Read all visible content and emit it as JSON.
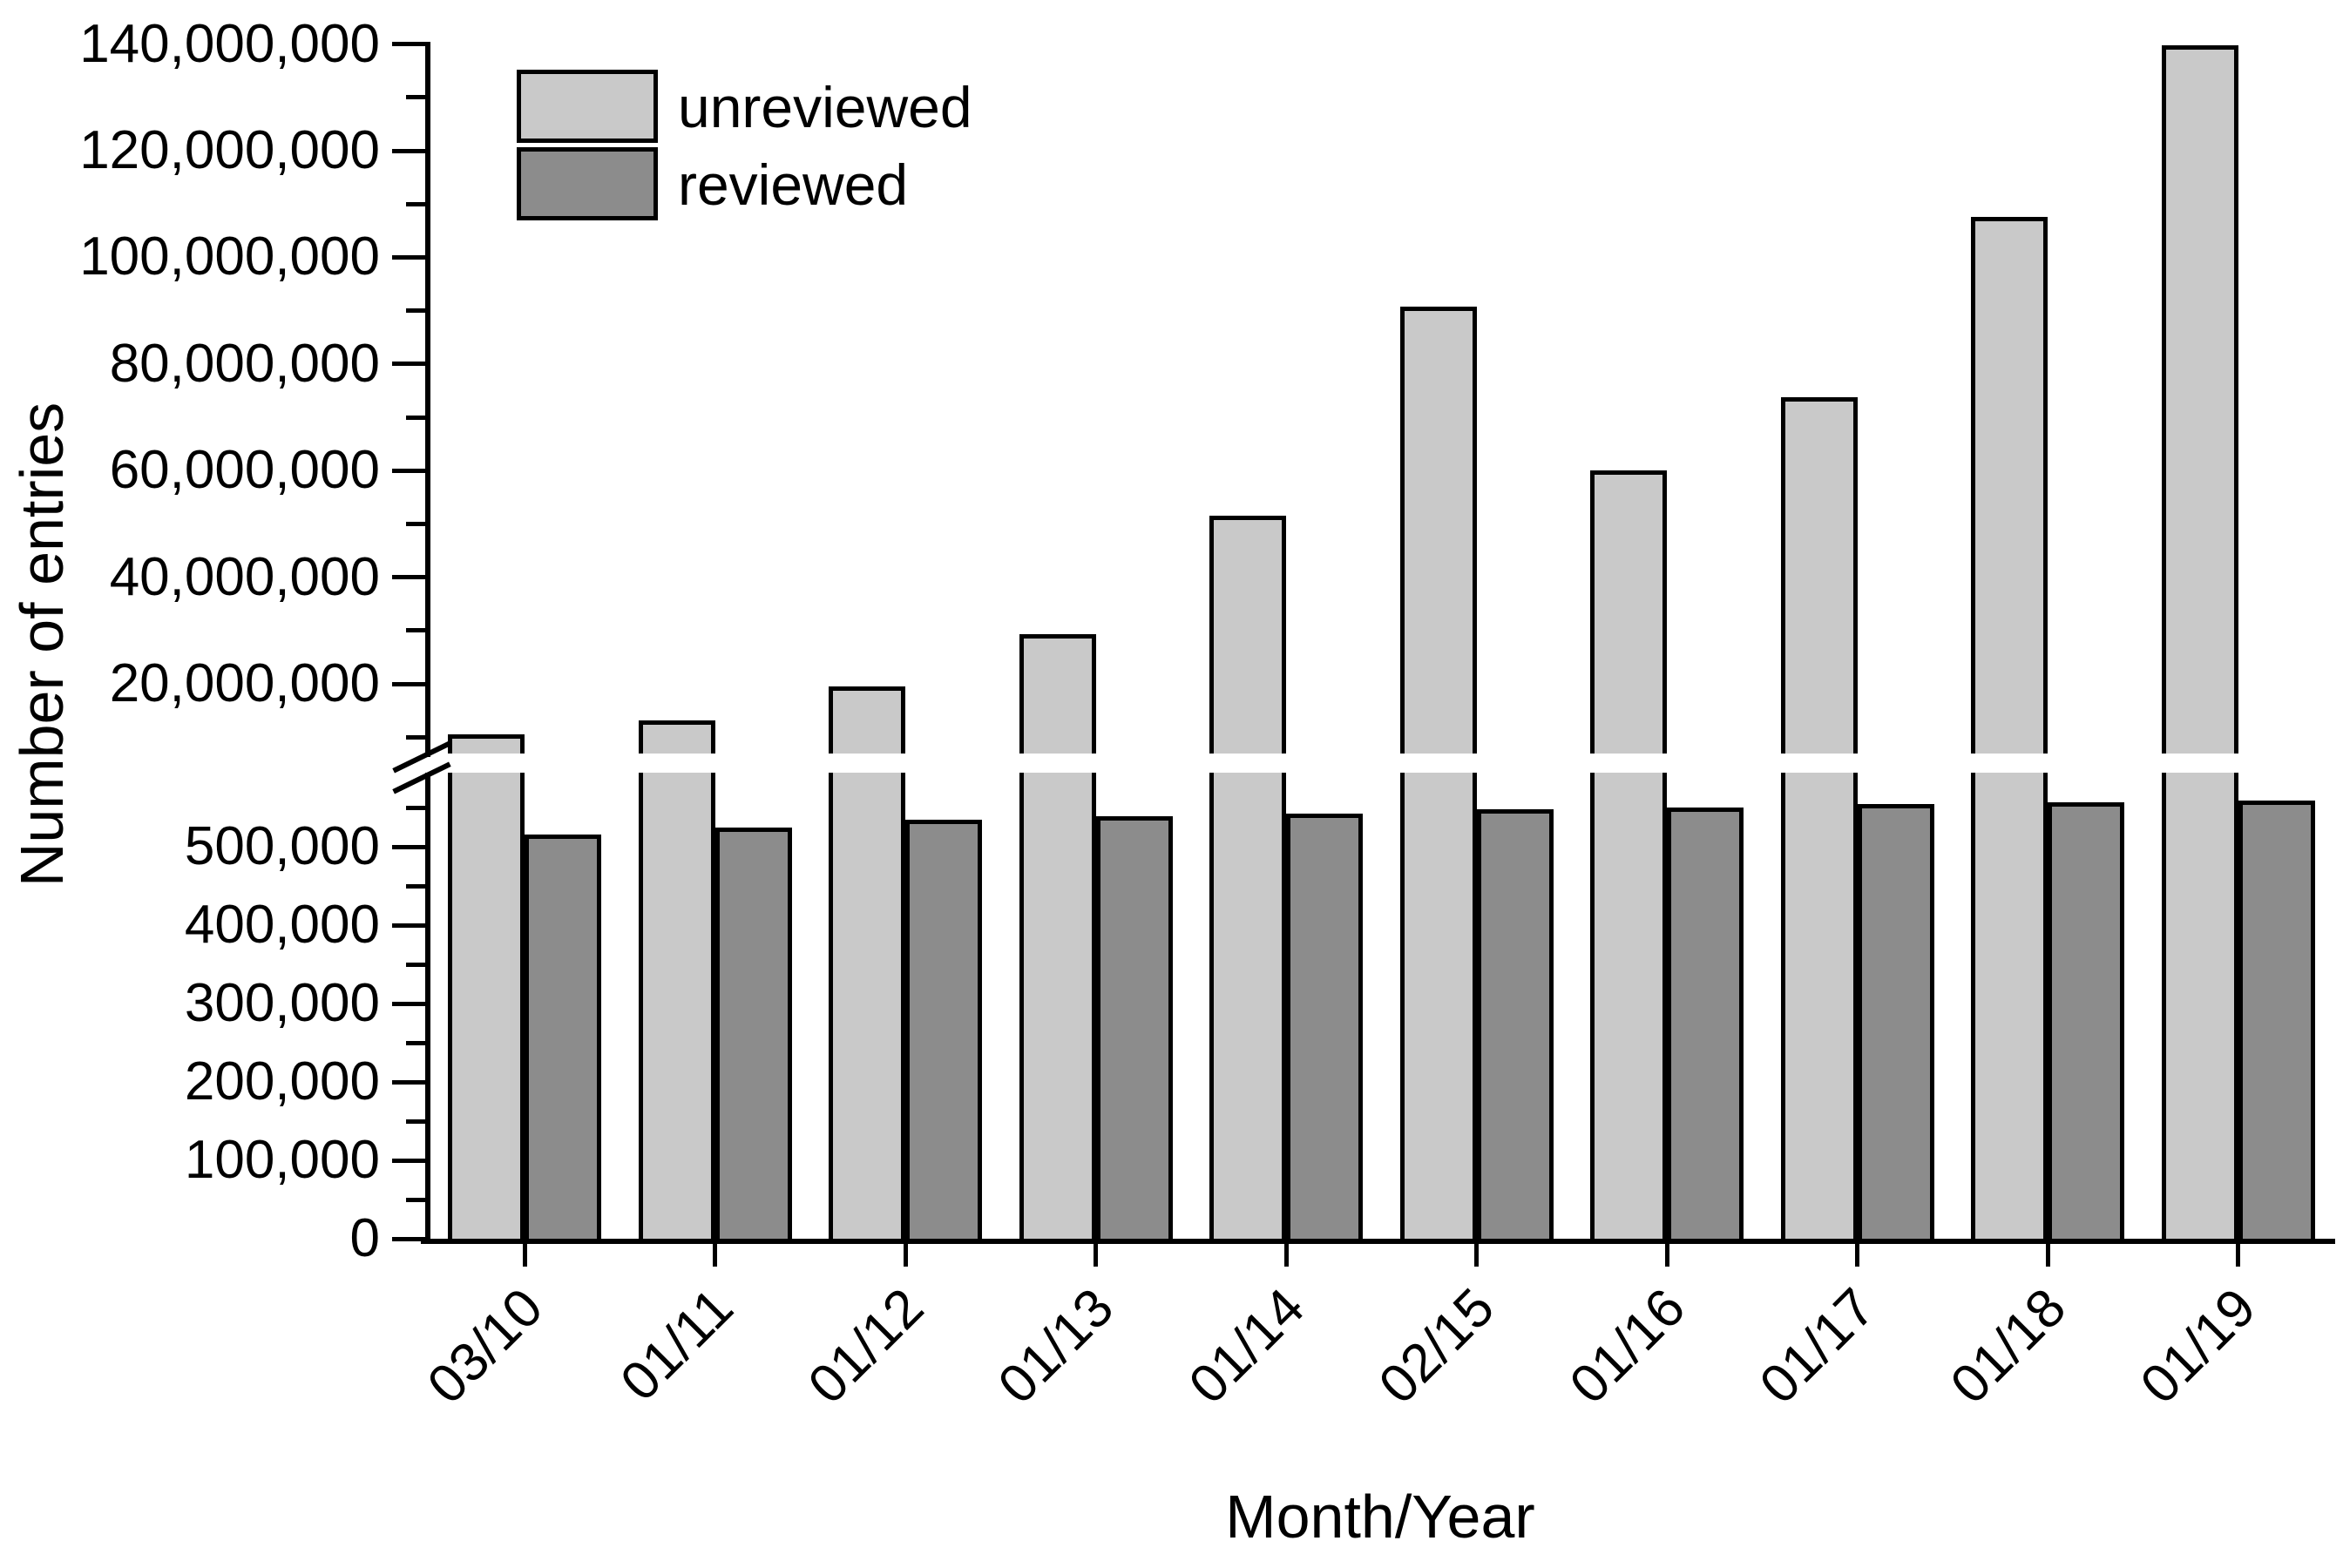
{
  "chart_data": {
    "type": "bar",
    "title": "",
    "xlabel": "Month/Year",
    "ylabel": "Number of entries",
    "grid": false,
    "legend_position": "top-left-inside",
    "bar_border_color": "#000000",
    "background_color": "#ffffff",
    "axis_break": {
      "present": true,
      "lower_value_range": [
        0,
        594000
      ],
      "upper_value_range": [
        6000000,
        140000000
      ]
    },
    "categories": [
      "03/10",
      "01/11",
      "01/12",
      "01/13",
      "01/14",
      "02/15",
      "01/16",
      "01/17",
      "01/18",
      "01/19"
    ],
    "series": [
      {
        "name": "unreviewed",
        "color": "#c9c9c9",
        "values": [
          10500000,
          13100000,
          19500000,
          29300000,
          51500000,
          90800000,
          60000000,
          73700000,
          107600000,
          139700000
        ]
      },
      {
        "name": "reviewed",
        "color": "#8c8c8c",
        "values": [
          516000,
          524000,
          534000,
          539000,
          542000,
          548000,
          550000,
          554000,
          557000,
          559000
        ]
      }
    ],
    "y_axis": {
      "upper_major_ticks": [
        {
          "label": "140,000,000",
          "value": 140000000
        },
        {
          "label": "120,000,000",
          "value": 120000000
        },
        {
          "label": "100,000,000",
          "value": 100000000
        },
        {
          "label": "80,000,000",
          "value": 80000000
        },
        {
          "label": "60,000,000",
          "value": 60000000
        },
        {
          "label": "40,000,000",
          "value": 40000000
        },
        {
          "label": "20,000,000",
          "value": 20000000
        }
      ],
      "upper_minor_tick_values": [
        130000000,
        110000000,
        90000000,
        70000000,
        50000000,
        30000000,
        10000000
      ],
      "lower_major_ticks": [
        {
          "label": "500,000",
          "value": 500000
        },
        {
          "label": "400,000",
          "value": 400000
        },
        {
          "label": "300,000",
          "value": 300000
        },
        {
          "label": "200,000",
          "value": 200000
        },
        {
          "label": "100,000",
          "value": 100000
        },
        {
          "label": "0",
          "value": 0
        }
      ],
      "lower_minor_tick_values": [
        550000,
        450000,
        350000,
        250000,
        150000,
        50000
      ]
    }
  }
}
